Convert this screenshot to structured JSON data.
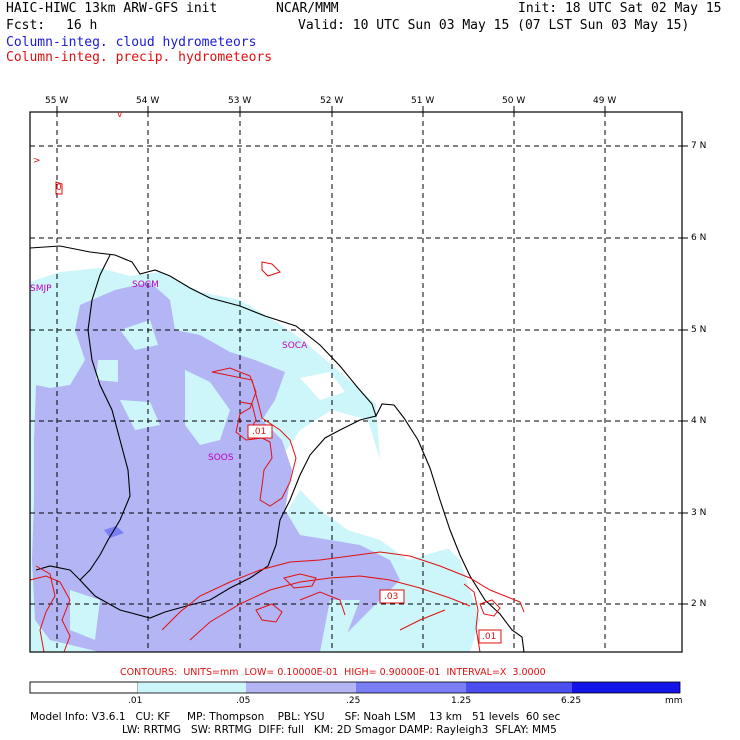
{
  "header": {
    "model": "HAIC-HIWC 13km ARW-GFS init",
    "org": "NCAR/MMM",
    "init": "Init: 18 UTC Sat 02 May 15",
    "fcst_label": "Fcst:",
    "fcst_value": "16 h",
    "valid": "Valid: 10 UTC Sun 03 May 15 (07 LST Sun 03 May 15)",
    "field1": "Column-integ. cloud hydrometeors",
    "field2": "Column-integ. precip. hydrometeors"
  },
  "longitudes": [
    "55 W",
    "54 W",
    "53 W",
    "52 W",
    "51 W",
    "50 W",
    "49 W"
  ],
  "latitudes": [
    "7 N",
    "6 N",
    "5 N",
    "4 N",
    "3 N",
    "2 N"
  ],
  "stations": [
    "SMJP",
    "SOCM",
    "SOCA",
    "SOOS"
  ],
  "contour_labels": [
    ".01",
    ".03",
    ".01"
  ],
  "small_marks": [
    "v",
    ">",
    "0"
  ],
  "contours_line": "CONTOURS:  UNITS=mm  LOW= 0.10000E-01  HIGH= 0.90000E-01  INTERVAL=X  3.0000",
  "colorbar": {
    "labels": [
      ".01",
      ".05",
      ".25",
      "1.25",
      "6.25"
    ],
    "unit": "mm",
    "colors": [
      "#ffffff",
      "#ccf6fa",
      "#b3b5f5",
      "#7b7ff5",
      "#4b4ff0",
      "#1414e8"
    ]
  },
  "model_info": {
    "line1": "Model Info: V3.6.1   CU: KF     MP: Thompson    PBL: YSU      SF: Noah LSM    13 km   51 levels  60 sec",
    "line2": "LW: RRTMG   SW: RRTMG  DIFF: full   KM: 2D Smagor DAMP: Rayleigh3  SFLAY: MM5"
  },
  "colors": {
    "cloud_text": "#1a1ad6",
    "precip_contour": "#e01010",
    "station_label": "#c000c0",
    "light_cloud": "#ccf6fa",
    "medium_cloud": "#b3b5f5"
  }
}
